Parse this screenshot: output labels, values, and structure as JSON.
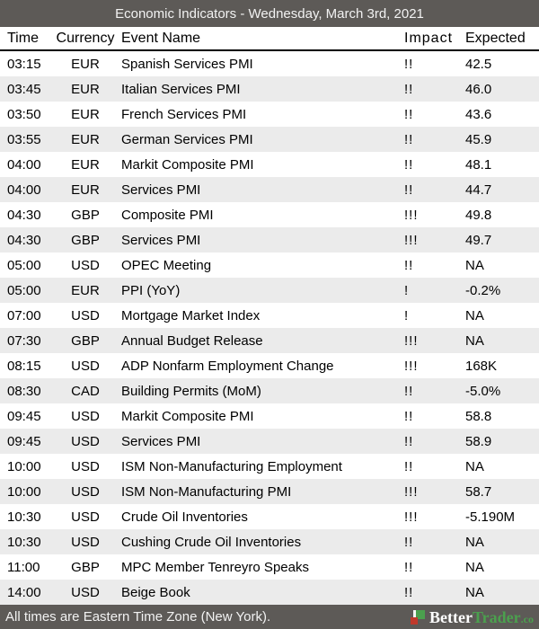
{
  "title_bar": {
    "title": "Economic Indicators - Wednesday, March 3rd, 2021"
  },
  "table": {
    "columns": [
      "Time",
      "Currency",
      "Event Name",
      "Impact",
      "Expected"
    ],
    "rows": [
      {
        "time": "03:15",
        "currency": "EUR",
        "event": "Spanish Services PMI",
        "impact": "!!",
        "expected": "42.5"
      },
      {
        "time": "03:45",
        "currency": "EUR",
        "event": "Italian Services PMI",
        "impact": "!!",
        "expected": "46.0"
      },
      {
        "time": "03:50",
        "currency": "EUR",
        "event": "French Services PMI",
        "impact": "!!",
        "expected": "43.6"
      },
      {
        "time": "03:55",
        "currency": "EUR",
        "event": "German Services PMI",
        "impact": "!!",
        "expected": "45.9"
      },
      {
        "time": "04:00",
        "currency": "EUR",
        "event": "Markit Composite PMI",
        "impact": "!!",
        "expected": "48.1"
      },
      {
        "time": "04:00",
        "currency": "EUR",
        "event": "Services PMI",
        "impact": "!!",
        "expected": "44.7"
      },
      {
        "time": "04:30",
        "currency": "GBP",
        "event": "Composite PMI",
        "impact": "!!!",
        "expected": "49.8"
      },
      {
        "time": "04:30",
        "currency": "GBP",
        "event": "Services PMI",
        "impact": "!!!",
        "expected": "49.7"
      },
      {
        "time": "05:00",
        "currency": "USD",
        "event": "OPEC Meeting",
        "impact": "!!",
        "expected": "NA"
      },
      {
        "time": "05:00",
        "currency": "EUR",
        "event": "PPI (YoY)",
        "impact": "!",
        "expected": "-0.2%"
      },
      {
        "time": "07:00",
        "currency": "USD",
        "event": "Mortgage Market Index",
        "impact": "!",
        "expected": "NA"
      },
      {
        "time": "07:30",
        "currency": "GBP",
        "event": "Annual Budget Release",
        "impact": "!!!",
        "expected": "NA"
      },
      {
        "time": "08:15",
        "currency": "USD",
        "event": "ADP Nonfarm Employment Change",
        "impact": "!!!",
        "expected": "168K"
      },
      {
        "time": "08:30",
        "currency": "CAD",
        "event": "Building Permits (MoM)",
        "impact": "!!",
        "expected": "-5.0%"
      },
      {
        "time": "09:45",
        "currency": "USD",
        "event": "Markit Composite PMI",
        "impact": "!!",
        "expected": "58.8"
      },
      {
        "time": "09:45",
        "currency": "USD",
        "event": "Services PMI",
        "impact": "!!",
        "expected": "58.9"
      },
      {
        "time": "10:00",
        "currency": "USD",
        "event": "ISM Non-Manufacturing Employment",
        "impact": "!!",
        "expected": "NA"
      },
      {
        "time": "10:00",
        "currency": "USD",
        "event": "ISM Non-Manufacturing PMI",
        "impact": "!!!",
        "expected": "58.7"
      },
      {
        "time": "10:30",
        "currency": "USD",
        "event": "Crude Oil Inventories",
        "impact": "!!!",
        "expected": "-5.190M"
      },
      {
        "time": "10:30",
        "currency": "USD",
        "event": "Cushing Crude Oil Inventories",
        "impact": "!!",
        "expected": "NA"
      },
      {
        "time": "11:00",
        "currency": "GBP",
        "event": "MPC Member Tenreyro Speaks",
        "impact": "!!",
        "expected": "NA"
      },
      {
        "time": "14:00",
        "currency": "USD",
        "event": "Beige Book",
        "impact": "!!",
        "expected": "NA"
      }
    ]
  },
  "footer": {
    "note": "All times are Eastern Time Zone (New York).",
    "brand": {
      "part_better": "Better",
      "part_trader": "Trader",
      "suffix": ".co"
    }
  },
  "colors": {
    "bar_background": "#5d5a57",
    "row_alternate": "#ebebeb",
    "brand_green": "#4ba04e",
    "logo_red": "#c0392b"
  }
}
